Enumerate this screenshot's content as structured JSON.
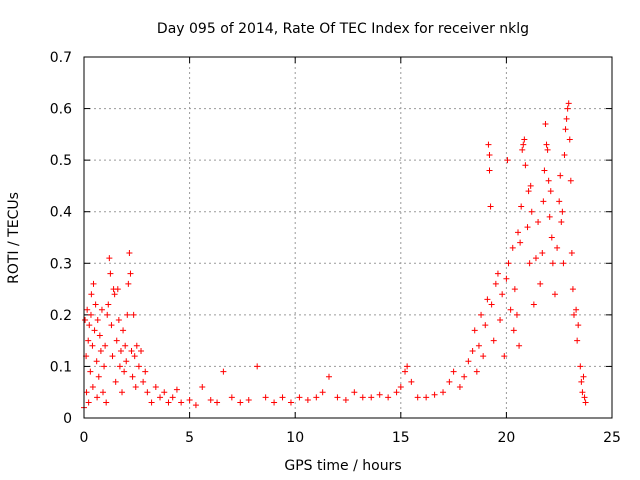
{
  "chart_data": {
    "type": "scatter",
    "title": "Day 095 of 2014, Rate Of TEC Index for receiver nklg",
    "xlabel": "GPS time / hours",
    "ylabel": "ROTI / TECUs",
    "xlim": [
      0,
      25
    ],
    "ylim": [
      0,
      0.7
    ],
    "xticks": [
      0,
      5,
      10,
      15,
      20,
      25
    ],
    "xtick_labels": [
      "0",
      "5",
      "10",
      "15",
      "20",
      "25"
    ],
    "yticks": [
      0,
      0.1,
      0.2,
      0.3,
      0.4,
      0.5,
      0.6,
      0.7
    ],
    "ytick_labels": [
      "0",
      "0.1",
      "0.2",
      "0.3",
      "0.4",
      "0.5",
      "0.6",
      "0.7"
    ],
    "grid": true,
    "marker": "plus",
    "color": "#ff0000",
    "series": [
      {
        "name": "ROTI",
        "points": [
          [
            0.0,
            0.02
          ],
          [
            0.05,
            0.19
          ],
          [
            0.1,
            0.12
          ],
          [
            0.12,
            0.05
          ],
          [
            0.15,
            0.21
          ],
          [
            0.2,
            0.15
          ],
          [
            0.22,
            0.03
          ],
          [
            0.25,
            0.18
          ],
          [
            0.3,
            0.09
          ],
          [
            0.33,
            0.2
          ],
          [
            0.35,
            0.24
          ],
          [
            0.4,
            0.14
          ],
          [
            0.42,
            0.06
          ],
          [
            0.45,
            0.26
          ],
          [
            0.5,
            0.17
          ],
          [
            0.55,
            0.22
          ],
          [
            0.6,
            0.11
          ],
          [
            0.62,
            0.04
          ],
          [
            0.65,
            0.19
          ],
          [
            0.7,
            0.08
          ],
          [
            0.75,
            0.16
          ],
          [
            0.8,
            0.13
          ],
          [
            0.85,
            0.21
          ],
          [
            0.9,
            0.05
          ],
          [
            0.95,
            0.1
          ],
          [
            1.0,
            0.14
          ],
          [
            1.05,
            0.03
          ],
          [
            1.1,
            0.2
          ],
          [
            1.15,
            0.22
          ],
          [
            1.2,
            0.31
          ],
          [
            1.25,
            0.28
          ],
          [
            1.3,
            0.18
          ],
          [
            1.35,
            0.12
          ],
          [
            1.4,
            0.25
          ],
          [
            1.45,
            0.24
          ],
          [
            1.5,
            0.07
          ],
          [
            1.55,
            0.15
          ],
          [
            1.6,
            0.25
          ],
          [
            1.65,
            0.19
          ],
          [
            1.7,
            0.1
          ],
          [
            1.75,
            0.13
          ],
          [
            1.8,
            0.05
          ],
          [
            1.85,
            0.17
          ],
          [
            1.9,
            0.09
          ],
          [
            1.95,
            0.14
          ],
          [
            2.0,
            0.11
          ],
          [
            2.05,
            0.2
          ],
          [
            2.1,
            0.26
          ],
          [
            2.15,
            0.32
          ],
          [
            2.2,
            0.28
          ],
          [
            2.25,
            0.13
          ],
          [
            2.3,
            0.08
          ],
          [
            2.35,
            0.2
          ],
          [
            2.4,
            0.12
          ],
          [
            2.45,
            0.06
          ],
          [
            2.5,
            0.14
          ],
          [
            2.6,
            0.1
          ],
          [
            2.7,
            0.13
          ],
          [
            2.8,
            0.07
          ],
          [
            2.9,
            0.09
          ],
          [
            3.0,
            0.05
          ],
          [
            3.2,
            0.03
          ],
          [
            3.4,
            0.06
          ],
          [
            3.6,
            0.04
          ],
          [
            3.8,
            0.05
          ],
          [
            4.0,
            0.03
          ],
          [
            4.2,
            0.04
          ],
          [
            4.4,
            0.055
          ],
          [
            4.6,
            0.03
          ],
          [
            5.0,
            0.035
          ],
          [
            5.3,
            0.025
          ],
          [
            5.6,
            0.06
          ],
          [
            6.0,
            0.035
          ],
          [
            6.3,
            0.03
          ],
          [
            6.6,
            0.09
          ],
          [
            7.0,
            0.04
          ],
          [
            7.4,
            0.03
          ],
          [
            7.8,
            0.035
          ],
          [
            8.2,
            0.1
          ],
          [
            8.6,
            0.04
          ],
          [
            9.0,
            0.03
          ],
          [
            9.4,
            0.04
          ],
          [
            9.8,
            0.03
          ],
          [
            10.2,
            0.04
          ],
          [
            10.6,
            0.035
          ],
          [
            11.0,
            0.04
          ],
          [
            11.3,
            0.05
          ],
          [
            11.6,
            0.08
          ],
          [
            12.0,
            0.04
          ],
          [
            12.4,
            0.035
          ],
          [
            12.8,
            0.05
          ],
          [
            13.2,
            0.04
          ],
          [
            13.6,
            0.04
          ],
          [
            14.0,
            0.045
          ],
          [
            14.4,
            0.04
          ],
          [
            14.8,
            0.05
          ],
          [
            15.0,
            0.06
          ],
          [
            15.2,
            0.09
          ],
          [
            15.3,
            0.1
          ],
          [
            15.5,
            0.07
          ],
          [
            15.8,
            0.04
          ],
          [
            16.2,
            0.04
          ],
          [
            16.6,
            0.045
          ],
          [
            17.0,
            0.05
          ],
          [
            17.3,
            0.07
          ],
          [
            17.5,
            0.09
          ],
          [
            17.8,
            0.06
          ],
          [
            18.0,
            0.08
          ],
          [
            18.2,
            0.11
          ],
          [
            18.4,
            0.13
          ],
          [
            18.5,
            0.17
          ],
          [
            18.6,
            0.09
          ],
          [
            18.7,
            0.14
          ],
          [
            18.8,
            0.2
          ],
          [
            18.9,
            0.12
          ],
          [
            19.0,
            0.18
          ],
          [
            19.1,
            0.23
          ],
          [
            19.15,
            0.53
          ],
          [
            19.2,
            0.51
          ],
          [
            19.2,
            0.48
          ],
          [
            19.25,
            0.41
          ],
          [
            19.3,
            0.22
          ],
          [
            19.4,
            0.15
          ],
          [
            19.5,
            0.26
          ],
          [
            19.6,
            0.28
          ],
          [
            19.7,
            0.19
          ],
          [
            19.8,
            0.24
          ],
          [
            19.9,
            0.12
          ],
          [
            20.0,
            0.27
          ],
          [
            20.05,
            0.5
          ],
          [
            20.1,
            0.3
          ],
          [
            20.2,
            0.21
          ],
          [
            20.3,
            0.33
          ],
          [
            20.35,
            0.17
          ],
          [
            20.4,
            0.25
          ],
          [
            20.5,
            0.2
          ],
          [
            20.55,
            0.36
          ],
          [
            20.6,
            0.14
          ],
          [
            20.65,
            0.34
          ],
          [
            20.7,
            0.41
          ],
          [
            20.75,
            0.52
          ],
          [
            20.8,
            0.53
          ],
          [
            20.85,
            0.54
          ],
          [
            20.9,
            0.49
          ],
          [
            21.0,
            0.37
          ],
          [
            21.05,
            0.44
          ],
          [
            21.1,
            0.3
          ],
          [
            21.15,
            0.45
          ],
          [
            21.2,
            0.4
          ],
          [
            21.3,
            0.22
          ],
          [
            21.4,
            0.31
          ],
          [
            21.5,
            0.38
          ],
          [
            21.6,
            0.26
          ],
          [
            21.7,
            0.32
          ],
          [
            21.75,
            0.42
          ],
          [
            21.8,
            0.48
          ],
          [
            21.85,
            0.57
          ],
          [
            21.9,
            0.53
          ],
          [
            21.95,
            0.52
          ],
          [
            22.0,
            0.46
          ],
          [
            22.05,
            0.39
          ],
          [
            22.1,
            0.44
          ],
          [
            22.15,
            0.35
          ],
          [
            22.2,
            0.3
          ],
          [
            22.3,
            0.24
          ],
          [
            22.4,
            0.33
          ],
          [
            22.5,
            0.42
          ],
          [
            22.55,
            0.47
          ],
          [
            22.6,
            0.38
          ],
          [
            22.65,
            0.4
          ],
          [
            22.7,
            0.3
          ],
          [
            22.75,
            0.51
          ],
          [
            22.8,
            0.56
          ],
          [
            22.85,
            0.58
          ],
          [
            22.9,
            0.6
          ],
          [
            22.95,
            0.61
          ],
          [
            23.0,
            0.54
          ],
          [
            23.05,
            0.46
          ],
          [
            23.1,
            0.32
          ],
          [
            23.15,
            0.25
          ],
          [
            23.2,
            0.2
          ],
          [
            23.3,
            0.21
          ],
          [
            23.35,
            0.15
          ],
          [
            23.4,
            0.18
          ],
          [
            23.5,
            0.1
          ],
          [
            23.55,
            0.07
          ],
          [
            23.6,
            0.05
          ],
          [
            23.65,
            0.08
          ],
          [
            23.7,
            0.04
          ],
          [
            23.75,
            0.03
          ]
        ]
      }
    ]
  }
}
